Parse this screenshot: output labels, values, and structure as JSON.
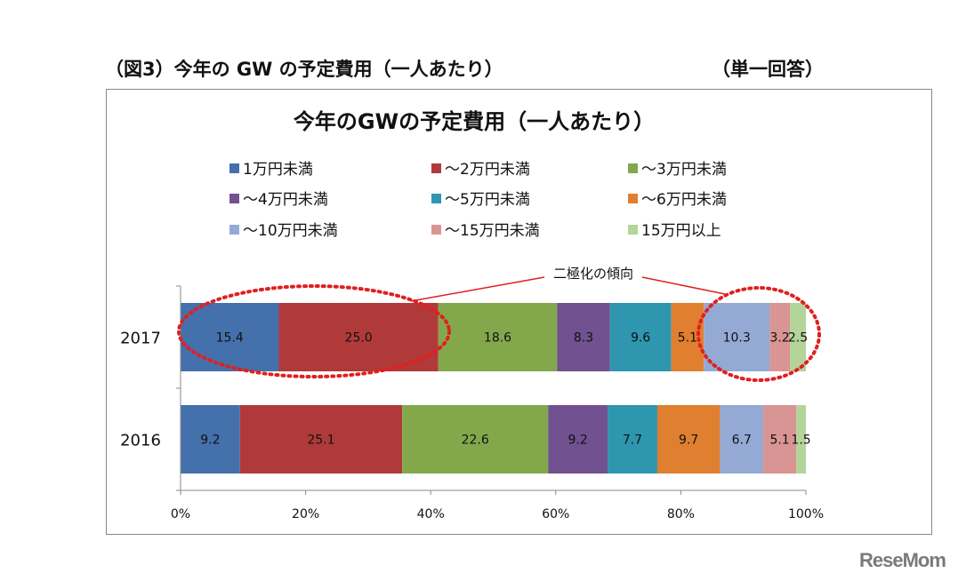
{
  "header": {
    "figure_title": "（図3）今年の GW の予定費用（一人あたり）",
    "answer_type": "（単一回答）"
  },
  "logo": "ReseMom",
  "chart_data": {
    "type": "bar",
    "orientation": "horizontal-stacked-100",
    "title": "今年のGWの予定費用（一人あたり）",
    "categories": [
      "2017",
      "2016"
    ],
    "series": [
      {
        "name": "1万円未満",
        "color": "#4470AB",
        "values": [
          15.4,
          9.2
        ]
      },
      {
        "name": "～2万円未満",
        "color": "#B03A3A",
        "values": [
          25.0,
          25.1
        ]
      },
      {
        "name": "～3万円未満",
        "color": "#83A84C",
        "values": [
          18.6,
          22.6
        ]
      },
      {
        "name": "～4万円未満",
        "color": "#71518F",
        "values": [
          8.3,
          9.2
        ]
      },
      {
        "name": "～5万円未満",
        "color": "#2E96AF",
        "values": [
          9.6,
          7.7
        ]
      },
      {
        "name": "～6万円未満",
        "color": "#E07F30",
        "values": [
          5.1,
          9.7
        ]
      },
      {
        "name": "～10万円未満",
        "color": "#94A9D3",
        "values": [
          10.3,
          6.7
        ]
      },
      {
        "name": "～15万円未満",
        "color": "#D99593",
        "values": [
          3.2,
          5.1
        ]
      },
      {
        "name": "15万円以上",
        "color": "#B4D49A",
        "values": [
          2.5,
          1.5
        ]
      }
    ],
    "xticks": [
      "0%",
      "20%",
      "40%",
      "60%",
      "80%",
      "100%"
    ],
    "xlim": [
      0,
      100
    ],
    "legend": "top",
    "grid": false,
    "annotation": {
      "text": "二極化の傾向",
      "color": "#E02020"
    }
  }
}
